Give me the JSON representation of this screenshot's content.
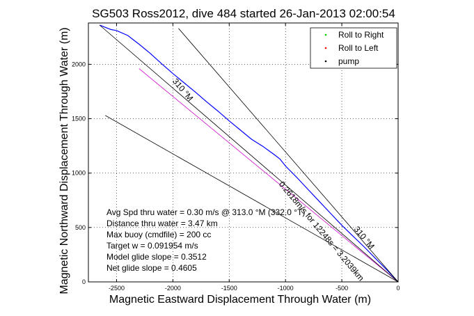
{
  "chart_data": {
    "type": "line",
    "title": "SG503 Ross2012, dive 484 started 26-Jan-2013 02:00:54",
    "xlabel": "Magnetic Eastward Displacement Through Water (m)",
    "ylabel": "Magnetic Northward Displacement Through Water (m)",
    "xlim": [
      -2750,
      0
    ],
    "ylim": [
      0,
      2380
    ],
    "grid": true,
    "xticks": [
      -2500,
      -2000,
      -1500,
      -1000,
      -500,
      0
    ],
    "yticks": [
      0,
      500,
      1000,
      1500,
      2000
    ],
    "legend": {
      "placement": "top-right",
      "entries": [
        {
          "label": "Roll to Right",
          "color": "#00cc00",
          "marker": "."
        },
        {
          "label": "Roll to Left",
          "color": "#ff0000",
          "marker": "."
        },
        {
          "label": "pump",
          "color": "#000000",
          "marker": "."
        }
      ]
    },
    "series": [
      {
        "color": "#0000ff",
        "x": [
          0,
          -100,
          -200,
          -300,
          -400,
          -500,
          -600,
          -700,
          -800,
          -900,
          -1000,
          -1050,
          -1100,
          -1200,
          -1300,
          -1400,
          -1500,
          -1600,
          -1700,
          -1800,
          -1900,
          -2000,
          -2100,
          -2200,
          -2300,
          -2400,
          -2500,
          -2550,
          -2600,
          -2650
        ],
        "y": [
          0,
          110,
          215,
          320,
          420,
          520,
          630,
          740,
          850,
          960,
          1065,
          1130,
          1170,
          1245,
          1310,
          1395,
          1480,
          1570,
          1655,
          1745,
          1830,
          1915,
          2005,
          2100,
          2185,
          2265,
          2310,
          2320,
          2340,
          2360
        ]
      },
      {
        "color": "#cc00cc",
        "x": [
          0,
          -2300
        ],
        "y": [
          0,
          1960
        ]
      }
    ],
    "reference_lines": [
      {
        "label": "310 °M",
        "x": [
          0,
          -1950
        ],
        "y": [
          0,
          2330
        ],
        "color": "#000000"
      },
      {
        "label": "0.2618m/s for 12248s = 3.2039km",
        "x": [
          0,
          -2600
        ],
        "y": [
          0,
          1530
        ],
        "color": "#000000"
      },
      {
        "label": "310 °M",
        "x": [
          0,
          -2650
        ],
        "y": [
          0,
          2360
        ],
        "color": "#000000"
      }
    ],
    "line_labels": [
      {
        "text": "310 °M",
        "x": -1930,
        "y": 1750,
        "angle": 50
      },
      {
        "text": "0.2618m/s for 12248s = 3.2039km",
        "x": -700,
        "y": 450,
        "angle": 50
      },
      {
        "text": "310 °M",
        "x": -320,
        "y": 390,
        "angle": 50
      }
    ],
    "annotations": [
      "Avg Spd thru water =  0.30 m/s @ 313.0 °M (332.0 °T)",
      "Distance thru water =  3.47 km",
      "Max buoy (cmdfile) = 200 cc",
      "Target w = 0.091954 m/s",
      "Model glide slope = 0.3512",
      "Net glide slope = 0.4605"
    ]
  }
}
